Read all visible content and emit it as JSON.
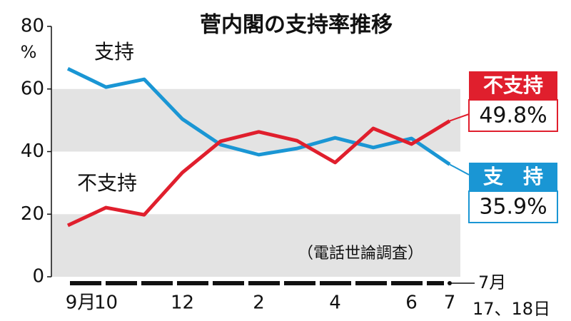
{
  "chart_data": {
    "type": "line",
    "title": "菅内閣の支持率推移",
    "y_unit": "%",
    "note": "（電話世論調査）",
    "categories": [
      "9月",
      "10",
      null,
      "12",
      null,
      "2",
      null,
      "4",
      null,
      "6",
      "7"
    ],
    "x_annotation": [
      "7月",
      "17、18日"
    ],
    "series": [
      {
        "name": "支持",
        "end_label": "支　持",
        "color": "#1a96d4",
        "values": [
          66.5,
          60.6,
          63.1,
          50.4,
          42.2,
          39.0,
          41.0,
          44.4,
          41.3,
          44.2,
          35.9
        ],
        "value_labels": [
          null,
          null,
          null,
          null,
          null,
          null,
          null,
          null,
          null,
          null,
          "35.9%"
        ]
      },
      {
        "name": "不支持",
        "end_label": "不支持",
        "color": "#e01f2d",
        "values": [
          16.4,
          22.1,
          19.8,
          33.3,
          43.3,
          46.3,
          43.5,
          36.5,
          47.4,
          42.4,
          49.8
        ],
        "value_labels": [
          null,
          null,
          null,
          null,
          null,
          null,
          null,
          null,
          null,
          null,
          "49.8%"
        ]
      }
    ],
    "ylim": [
      0,
      80
    ],
    "yticks": [
      0,
      20,
      40,
      60,
      80
    ],
    "shaded_bands": [
      [
        0,
        20
      ],
      [
        40,
        60
      ]
    ]
  }
}
